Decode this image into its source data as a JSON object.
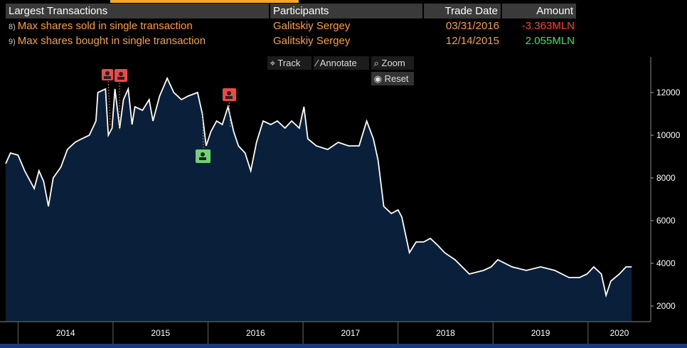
{
  "table": {
    "header": [
      "Largest Transactions",
      "Participants",
      "Trade Date",
      "Amount"
    ],
    "rows": [
      [
        "8)",
        "Max shares sold in single transaction",
        "Galitskiy Sergey",
        "03/31/2016",
        "-3.363MLN"
      ],
      [
        "9)",
        "Max shares bought in single transaction",
        "Galitskiy Sergey",
        "12/14/2015",
        "2.055MLN"
      ]
    ]
  },
  "toolbar": [
    "Track",
    "Annotate",
    "Zoom",
    "Reset"
  ],
  "chart_data": {
    "type": "area",
    "color": "#ffffff",
    "fill": "#0a1f3a",
    "x": [
      2013.87,
      2013.92,
      2014.0,
      2014.07,
      2014.17,
      2014.22,
      2014.27,
      2014.32,
      2014.37,
      2014.45,
      2014.52,
      2014.6,
      2014.67,
      2014.75,
      2014.82,
      2014.84,
      2014.92,
      2014.95,
      2014.99,
      2015.02,
      2015.07,
      2015.11,
      2015.16,
      2015.2,
      2015.23,
      2015.31,
      2015.38,
      2015.42,
      2015.49,
      2015.57,
      2015.64,
      2015.72,
      2015.79,
      2015.89,
      2015.94,
      2015.98,
      2016.03,
      2016.09,
      2016.15,
      2016.21,
      2016.27,
      2016.32,
      2016.39,
      2016.45,
      2016.51,
      2016.58,
      2016.66,
      2016.73,
      2016.81,
      2016.88,
      2016.96,
      2017.01,
      2017.05,
      2017.14,
      2017.26,
      2017.37,
      2017.48,
      2017.59,
      2017.67,
      2017.74,
      2017.79,
      2017.85,
      2017.93,
      2018.0,
      2018.04,
      2018.12,
      2018.19,
      2018.27,
      2018.34,
      2018.42,
      2018.49,
      2018.6,
      2018.75,
      2018.9,
      2018.98,
      2019.05,
      2019.2,
      2019.35,
      2019.5,
      2019.65,
      2019.8,
      2019.91,
      2019.99,
      2020.06,
      2020.14,
      2020.19,
      2020.24,
      2020.33,
      2020.4,
      2020.46
    ],
    "values": [
      8667,
      9167,
      9067,
      8333,
      7500,
      8333,
      7833,
      6667,
      8000,
      8500,
      9333,
      9667,
      9833,
      10000,
      10667,
      12000,
      12167,
      10000,
      10333,
      12167,
      10333,
      11667,
      12167,
      10500,
      11333,
      11167,
      11667,
      10667,
      11833,
      12667,
      12000,
      11667,
      11833,
      12000,
      11000,
      9500,
      10167,
      10667,
      10500,
      11333,
      10167,
      9500,
      9167,
      8333,
      9667,
      10667,
      10500,
      10667,
      10333,
      10667,
      10333,
      11333,
      9833,
      9500,
      9333,
      9667,
      9500,
      9500,
      10667,
      9833,
      8833,
      6667,
      6333,
      6500,
      6167,
      4500,
      5000,
      5000,
      5167,
      4833,
      4500,
      4167,
      3500,
      3667,
      3833,
      4167,
      3833,
      3667,
      3833,
      3667,
      3333,
      3333,
      3500,
      3833,
      3500,
      2500,
      3167,
      3500,
      3833,
      3833
    ],
    "xlim": [
      2013.81,
      2020.66
    ],
    "xticks": [
      {
        "value": 2014,
        "label": "2014"
      },
      {
        "value": 2015,
        "label": "2015"
      },
      {
        "value": 2016,
        "label": "2016"
      },
      {
        "value": 2017,
        "label": "2017"
      },
      {
        "value": 2018,
        "label": "2018"
      },
      {
        "value": 2019,
        "label": "2019"
      },
      {
        "value": 2020,
        "label": "2020"
      }
    ],
    "ylim": [
      1300,
      13500
    ],
    "yticks": [
      2000,
      4000,
      6000,
      8000,
      10000,
      12000
    ]
  }
}
